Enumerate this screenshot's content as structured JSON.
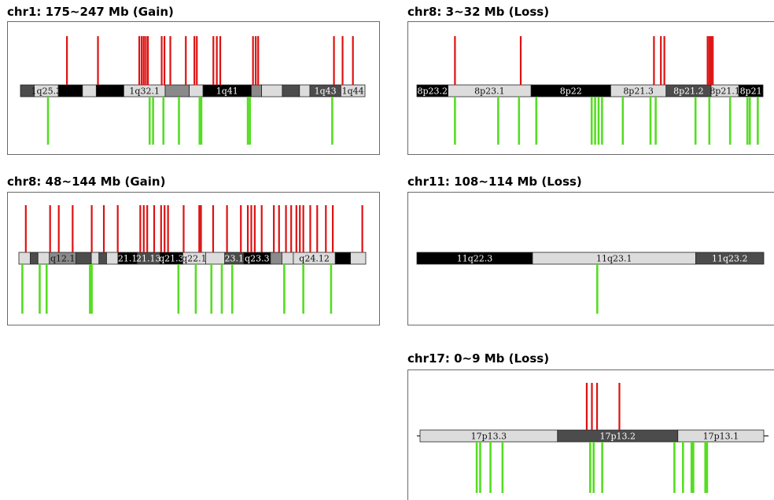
{
  "colors": {
    "gain": "#dd1111",
    "loss": "#55dd22",
    "band_black": "#000000",
    "band_dark": "#4c4c4c",
    "band_mid": "#8a8a8a",
    "band_light": "#dcdcdc",
    "band_outline": "#222222"
  },
  "panels": [
    {
      "id": "chr1",
      "title": "chr1: 175~247 Mb (Gain)",
      "bands": [
        {
          "w": 4,
          "s": "dark",
          "label": ""
        },
        {
          "w": 7,
          "s": "light",
          "label": "1q25.3"
        },
        {
          "w": 7,
          "s": "black",
          "label": ""
        },
        {
          "w": 4,
          "s": "light",
          "label": ""
        },
        {
          "w": 8,
          "s": "black",
          "label": ""
        },
        {
          "w": 12,
          "s": "light",
          "label": "1q32.1"
        },
        {
          "w": 7,
          "s": "mid",
          "label": ""
        },
        {
          "w": 4,
          "s": "light",
          "label": ""
        },
        {
          "w": 14,
          "s": "black",
          "label": "1q41"
        },
        {
          "w": 3,
          "s": "mid",
          "label": ""
        },
        {
          "w": 6,
          "s": "light",
          "label": ""
        },
        {
          "w": 5,
          "s": "dark",
          "label": ""
        },
        {
          "w": 3,
          "s": "light",
          "label": ""
        },
        {
          "w": 9,
          "s": "dark",
          "label": "1q43"
        },
        {
          "w": 7,
          "s": "light",
          "label": "1q44"
        }
      ],
      "gain": [
        {
          "p": 0.135,
          "h": 1
        },
        {
          "p": 0.225,
          "h": 1
        },
        {
          "p": 0.345,
          "h": 1
        },
        {
          "p": 0.352,
          "h": 1
        },
        {
          "p": 0.358,
          "h": 1
        },
        {
          "p": 0.364,
          "h": 1
        },
        {
          "p": 0.37,
          "h": 1
        },
        {
          "p": 0.41,
          "h": 1
        },
        {
          "p": 0.418,
          "h": 1
        },
        {
          "p": 0.435,
          "h": 1
        },
        {
          "p": 0.48,
          "h": 1
        },
        {
          "p": 0.505,
          "h": 1
        },
        {
          "p": 0.512,
          "h": 1
        },
        {
          "p": 0.56,
          "h": 1
        },
        {
          "p": 0.57,
          "h": 1
        },
        {
          "p": 0.58,
          "h": 1
        },
        {
          "p": 0.675,
          "h": 1
        },
        {
          "p": 0.683,
          "h": 1
        },
        {
          "p": 0.69,
          "h": 1
        },
        {
          "p": 0.91,
          "h": 1
        },
        {
          "p": 0.935,
          "h": 1
        },
        {
          "p": 0.965,
          "h": 1
        }
      ],
      "loss": [
        {
          "p": 0.08,
          "h": 1
        },
        {
          "p": 0.375,
          "h": 1
        },
        {
          "p": 0.385,
          "h": 1
        },
        {
          "p": 0.415,
          "h": 1
        },
        {
          "p": 0.46,
          "h": 1
        },
        {
          "p": 0.52,
          "h": 1
        },
        {
          "p": 0.525,
          "h": 1
        },
        {
          "p": 0.66,
          "h": 1
        },
        {
          "p": 0.666,
          "h": 1
        },
        {
          "p": 0.905,
          "h": 1
        }
      ]
    },
    {
      "id": "chr8p",
      "title": "chr8: 3~32 Mb (Loss)",
      "bands": [
        {
          "w": 9,
          "s": "black",
          "label": "8p23.2"
        },
        {
          "w": 24,
          "s": "light",
          "label": "8p23.1"
        },
        {
          "w": 23,
          "s": "black",
          "label": "8p22"
        },
        {
          "w": 16,
          "s": "light",
          "label": "8p21.3"
        },
        {
          "w": 13,
          "s": "dark",
          "label": "8p21.2"
        },
        {
          "w": 8,
          "s": "light",
          "label": "8p21.1"
        },
        {
          "w": 7,
          "s": "black",
          "label": "8p21"
        }
      ],
      "gain": [
        {
          "p": 0.11,
          "h": 1
        },
        {
          "p": 0.3,
          "h": 1
        },
        {
          "p": 0.685,
          "h": 1
        },
        {
          "p": 0.705,
          "h": 1
        },
        {
          "p": 0.715,
          "h": 1
        },
        {
          "p": 0.84,
          "h": 1
        },
        {
          "p": 0.845,
          "h": 1
        },
        {
          "p": 0.85,
          "h": 1
        },
        {
          "p": 0.855,
          "h": 1
        }
      ],
      "loss": [
        {
          "p": 0.11,
          "h": 1
        },
        {
          "p": 0.235,
          "h": 1
        },
        {
          "p": 0.295,
          "h": 1
        },
        {
          "p": 0.345,
          "h": 1
        },
        {
          "p": 0.505,
          "h": 1
        },
        {
          "p": 0.515,
          "h": 1
        },
        {
          "p": 0.525,
          "h": 1
        },
        {
          "p": 0.535,
          "h": 1
        },
        {
          "p": 0.595,
          "h": 1
        },
        {
          "p": 0.675,
          "h": 1
        },
        {
          "p": 0.69,
          "h": 1
        },
        {
          "p": 0.805,
          "h": 1
        },
        {
          "p": 0.845,
          "h": 1
        },
        {
          "p": 0.905,
          "h": 1
        },
        {
          "p": 0.955,
          "h": 1
        },
        {
          "p": 0.962,
          "h": 1
        },
        {
          "p": 0.985,
          "h": 1
        }
      ]
    },
    {
      "id": "chr8q",
      "title": "chr8: 48~144 Mb (Gain)",
      "bands": [
        {
          "w": 3,
          "s": "light",
          "label": ""
        },
        {
          "w": 2,
          "s": "dark",
          "label": ""
        },
        {
          "w": 3,
          "s": "light",
          "label": ""
        },
        {
          "w": 7,
          "s": "mid",
          "label": "q12.1"
        },
        {
          "w": 4,
          "s": "dark",
          "label": ""
        },
        {
          "w": 2,
          "s": "light",
          "label": ""
        },
        {
          "w": 2,
          "s": "dark",
          "label": ""
        },
        {
          "w": 3,
          "s": "light",
          "label": ""
        },
        {
          "w": 5,
          "s": "black",
          "label": "21.1"
        },
        {
          "w": 6,
          "s": "dark",
          "label": "21.13"
        },
        {
          "w": 6,
          "s": "black",
          "label": "q21.3"
        },
        {
          "w": 6,
          "s": "light",
          "label": "q22.1"
        },
        {
          "w": 5,
          "s": "light",
          "label": ""
        },
        {
          "w": 5,
          "s": "dark",
          "label": "23.1"
        },
        {
          "w": 7,
          "s": "black",
          "label": "q23.3"
        },
        {
          "w": 3,
          "s": "mid",
          "label": ""
        },
        {
          "w": 3,
          "s": "light",
          "label": ""
        },
        {
          "w": 11,
          "s": "light",
          "label": "q24.12"
        },
        {
          "w": 4,
          "s": "black",
          "label": ""
        },
        {
          "w": 4,
          "s": "light",
          "label": ""
        }
      ],
      "gain": [
        {
          "p": 0.02,
          "h": 1
        },
        {
          "p": 0.09,
          "h": 1
        },
        {
          "p": 0.115,
          "h": 1
        },
        {
          "p": 0.155,
          "h": 1
        },
        {
          "p": 0.21,
          "h": 1
        },
        {
          "p": 0.245,
          "h": 1
        },
        {
          "p": 0.285,
          "h": 1
        },
        {
          "p": 0.35,
          "h": 1
        },
        {
          "p": 0.36,
          "h": 1
        },
        {
          "p": 0.37,
          "h": 1
        },
        {
          "p": 0.39,
          "h": 1
        },
        {
          "p": 0.41,
          "h": 1
        },
        {
          "p": 0.42,
          "h": 1
        },
        {
          "p": 0.43,
          "h": 1
        },
        {
          "p": 0.475,
          "h": 1
        },
        {
          "p": 0.52,
          "h": 1
        },
        {
          "p": 0.525,
          "h": 1
        },
        {
          "p": 0.56,
          "h": 1
        },
        {
          "p": 0.6,
          "h": 1
        },
        {
          "p": 0.64,
          "h": 1
        },
        {
          "p": 0.66,
          "h": 1
        },
        {
          "p": 0.67,
          "h": 1
        },
        {
          "p": 0.68,
          "h": 1
        },
        {
          "p": 0.7,
          "h": 1
        },
        {
          "p": 0.735,
          "h": 1
        },
        {
          "p": 0.75,
          "h": 1
        },
        {
          "p": 0.77,
          "h": 1
        },
        {
          "p": 0.785,
          "h": 1
        },
        {
          "p": 0.8,
          "h": 1
        },
        {
          "p": 0.81,
          "h": 1
        },
        {
          "p": 0.82,
          "h": 1
        },
        {
          "p": 0.84,
          "h": 1
        },
        {
          "p": 0.86,
          "h": 1
        },
        {
          "p": 0.885,
          "h": 1
        },
        {
          "p": 0.905,
          "h": 1
        },
        {
          "p": 0.99,
          "h": 1
        }
      ],
      "loss": [
        {
          "p": 0.01,
          "h": 1
        },
        {
          "p": 0.06,
          "h": 1
        },
        {
          "p": 0.08,
          "h": 1
        },
        {
          "p": 0.205,
          "h": 1
        },
        {
          "p": 0.21,
          "h": 1
        },
        {
          "p": 0.46,
          "h": 1
        },
        {
          "p": 0.51,
          "h": 1
        },
        {
          "p": 0.555,
          "h": 1
        },
        {
          "p": 0.585,
          "h": 1
        },
        {
          "p": 0.615,
          "h": 1
        },
        {
          "p": 0.765,
          "h": 1
        },
        {
          "p": 0.82,
          "h": 1
        },
        {
          "p": 0.9,
          "h": 1
        }
      ]
    },
    {
      "id": "chr11",
      "title": "chr11: 108~114 Mb (Loss)",
      "bands": [
        {
          "w": 34,
          "s": "black",
          "label": "11q22.3"
        },
        {
          "w": 48,
          "s": "light",
          "label": "11q23.1"
        },
        {
          "w": 20,
          "s": "dark",
          "label": "11q23.2"
        }
      ],
      "gain": [],
      "loss": [
        {
          "p": 0.52,
          "h": 1
        }
      ]
    },
    {
      "id": "chr17",
      "title": "chr17: 0~9 Mb (Loss)",
      "bands": [
        {
          "w": 40,
          "s": "light",
          "label": "17p13.3"
        },
        {
          "w": 35,
          "s": "dark",
          "label": "17p13.2"
        },
        {
          "w": 25,
          "s": "light",
          "label": "17p13.1"
        }
      ],
      "gain": [
        {
          "p": 0.485,
          "h": 1
        },
        {
          "p": 0.5,
          "h": 1
        },
        {
          "p": 0.515,
          "h": 1
        },
        {
          "p": 0.58,
          "h": 1
        }
      ],
      "loss": [
        {
          "p": 0.165,
          "h": 1
        },
        {
          "p": 0.175,
          "h": 1
        },
        {
          "p": 0.205,
          "h": 1
        },
        {
          "p": 0.24,
          "h": 1
        },
        {
          "p": 0.495,
          "h": 1
        },
        {
          "p": 0.505,
          "h": 1
        },
        {
          "p": 0.53,
          "h": 1
        },
        {
          "p": 0.74,
          "h": 1
        },
        {
          "p": 0.765,
          "h": 1
        },
        {
          "p": 0.79,
          "h": 1
        },
        {
          "p": 0.795,
          "h": 1
        },
        {
          "p": 0.83,
          "h": 1
        },
        {
          "p": 0.835,
          "h": 1
        }
      ]
    }
  ]
}
